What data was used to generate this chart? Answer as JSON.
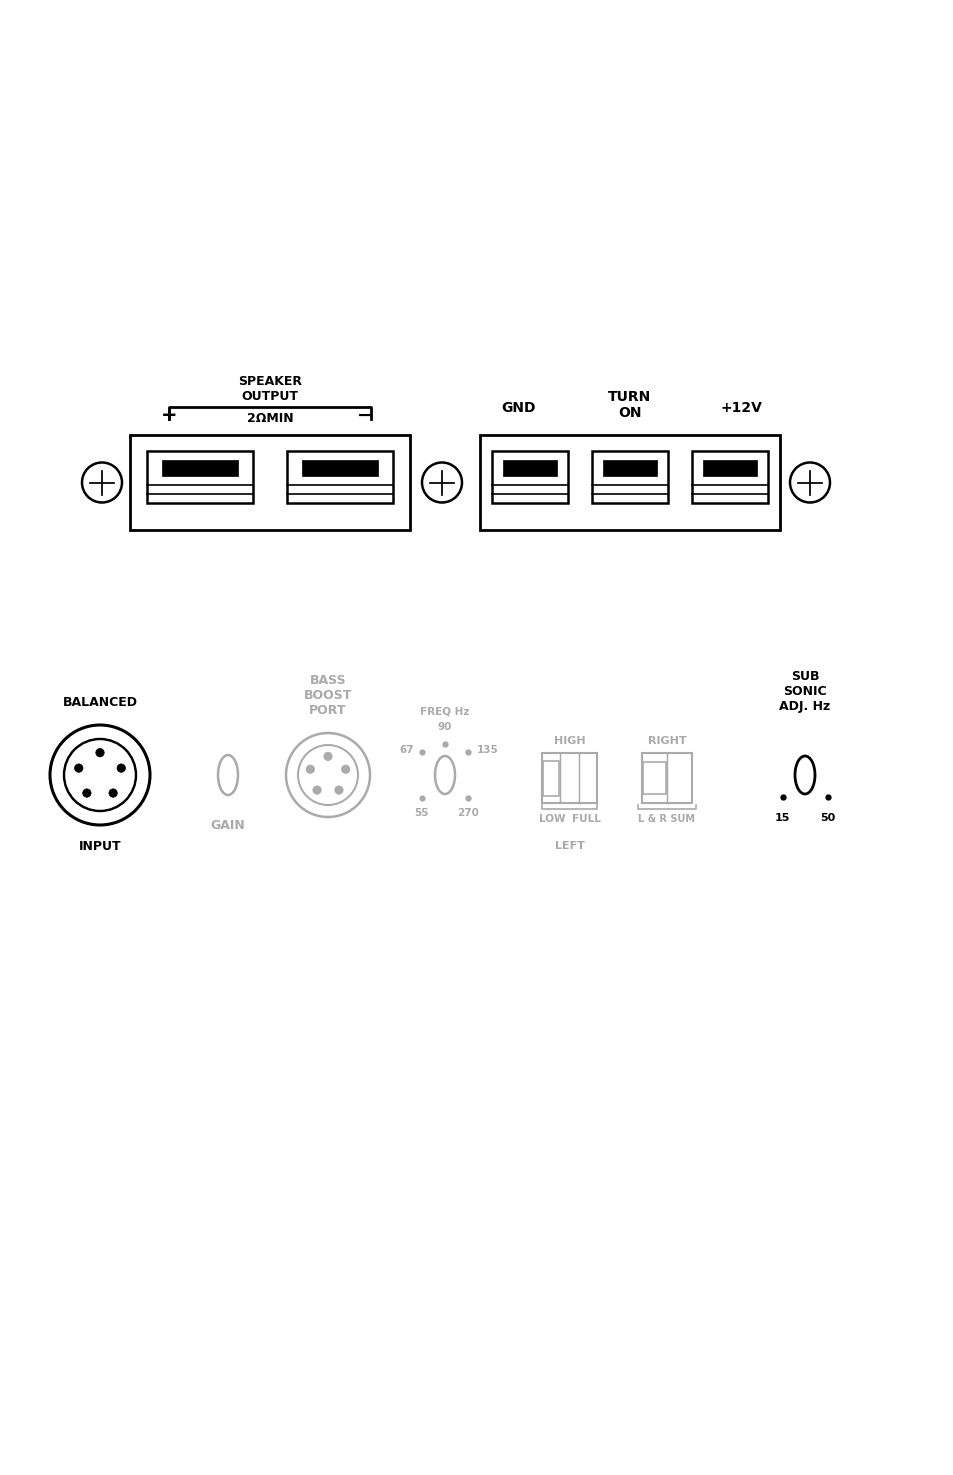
{
  "bg_color": "#ffffff",
  "fig_width": 9.54,
  "fig_height": 14.75,
  "speaker_output_label": "SPEAKER\nOUTPUT",
  "two_ohm_label": "2ΩMIN",
  "plus_label": "+",
  "minus_label": "−",
  "gnd_label": "GND",
  "turn_on_label": "TURN\nON",
  "plus12v_label": "+12V",
  "balanced_label": "BALANCED",
  "input_label": "INPUT",
  "gain_label": "GAIN",
  "bass_boost_port_label": "BASS\nBOOST\nPORT",
  "freq_hz_label": "FREQ Hz",
  "freq_90_label": "90",
  "freq_67_label": "67",
  "freq_135_label": "135",
  "freq_55_label": "55",
  "freq_270_label": "270",
  "high_label": "HIGH",
  "low_label": "LOW",
  "full_label": "FULL",
  "right_label": "RIGHT",
  "left_label": "LEFT",
  "lr_sum_label": "L & R SUM",
  "sub_sonic_label": "SUB\nSONIC\nADJ. Hz",
  "sub_15_label": "15",
  "sub_50_label": "50",
  "gray_color": "#aaaaaa",
  "black_color": "#000000"
}
